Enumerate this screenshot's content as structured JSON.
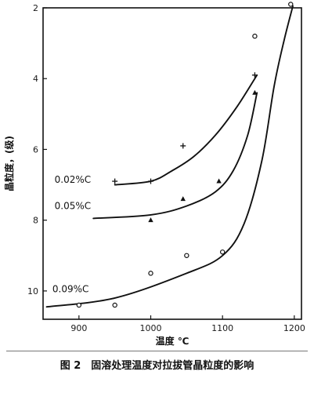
{
  "caption": "图 2　固溶处理温度对拉拔管晶粒度的影响",
  "chart_data": {
    "type": "line",
    "xlabel": "温度 ℃",
    "ylabel": "晶粒度，(级)",
    "xlim": [
      850,
      1210
    ],
    "ylim": [
      2,
      10.8
    ],
    "y_inverted": true,
    "x_ticks": [
      900,
      1000,
      1100,
      1200
    ],
    "y_ticks": [
      2,
      4,
      6,
      8,
      10
    ],
    "series": [
      {
        "name": "0.02%C",
        "marker": "plus",
        "points": [
          [
            950,
            6.9
          ],
          [
            1000,
            6.9
          ],
          [
            1045,
            5.9
          ],
          [
            1145,
            3.9
          ]
        ],
        "curve": [
          [
            950,
            7.0
          ],
          [
            1000,
            6.9
          ],
          [
            1030,
            6.6
          ],
          [
            1060,
            6.2
          ],
          [
            1090,
            5.6
          ],
          [
            1120,
            4.8
          ],
          [
            1148,
            3.9
          ]
        ]
      },
      {
        "name": "0.05%C",
        "marker": "triangle",
        "points": [
          [
            1000,
            8.0
          ],
          [
            1045,
            7.4
          ],
          [
            1095,
            6.9
          ],
          [
            1145,
            4.4
          ]
        ],
        "curve": [
          [
            920,
            7.95
          ],
          [
            1000,
            7.85
          ],
          [
            1050,
            7.6
          ],
          [
            1090,
            7.2
          ],
          [
            1115,
            6.6
          ],
          [
            1135,
            5.6
          ],
          [
            1148,
            4.4
          ]
        ]
      },
      {
        "name": "0.09%C",
        "marker": "circle",
        "points": [
          [
            900,
            10.4
          ],
          [
            950,
            10.4
          ],
          [
            1000,
            9.5
          ],
          [
            1050,
            9.0
          ],
          [
            1100,
            8.9
          ],
          [
            1145,
            2.8
          ],
          [
            1195,
            1.9
          ]
        ],
        "curve": [
          [
            855,
            10.45
          ],
          [
            950,
            10.2
          ],
          [
            1050,
            9.5
          ],
          [
            1100,
            9.0
          ],
          [
            1130,
            8.1
          ],
          [
            1155,
            6.3
          ],
          [
            1172,
            4.2
          ],
          [
            1186,
            2.9
          ],
          [
            1198,
            1.95
          ]
        ]
      }
    ]
  }
}
